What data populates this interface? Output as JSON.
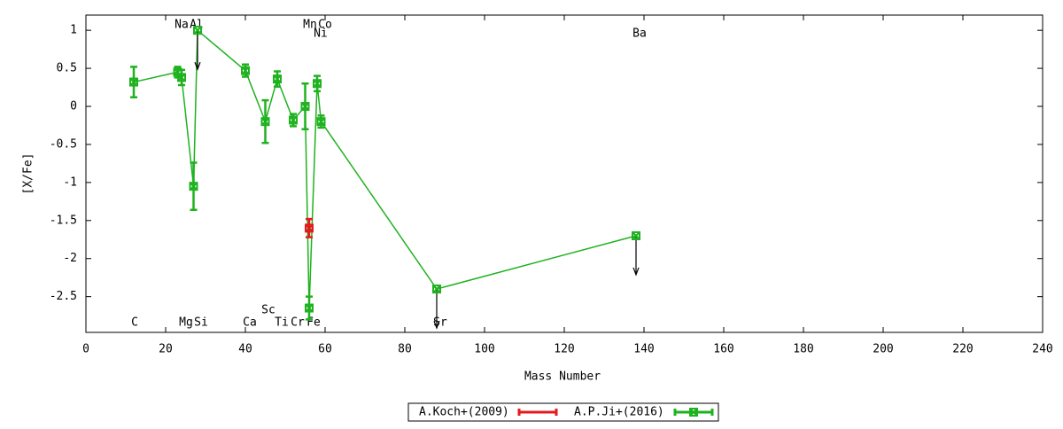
{
  "chart_data": {
    "type": "line",
    "xlabel": "Mass Number",
    "ylabel": "[X/Fe]",
    "xlim": [
      0,
      240
    ],
    "xticks": [
      0,
      20,
      40,
      60,
      80,
      100,
      120,
      140,
      160,
      180,
      200,
      220,
      240
    ],
    "ylim": [
      -2.97,
      1.2
    ],
    "yticks": [
      1,
      0.5,
      0,
      -0.5,
      -1,
      -1.5,
      -2,
      -2.5
    ],
    "series": [
      {
        "name": "A.Koch+(2009)",
        "color": "#e41a1c",
        "x": [
          56
        ],
        "values": [
          -1.6
        ],
        "errors": [
          0.12
        ],
        "upper_limits": [
          false
        ]
      },
      {
        "name": "A.P.Ji+(2016)",
        "color": "#1fb21f",
        "x": [
          12,
          23,
          24,
          27,
          28,
          40,
          45,
          48,
          52,
          55,
          56,
          58,
          59,
          88,
          138
        ],
        "values": [
          0.32,
          0.45,
          0.38,
          -1.05,
          1.0,
          0.47,
          -0.2,
          0.36,
          -0.18,
          0.0,
          -2.65,
          0.3,
          -0.2,
          -2.4,
          -1.7
        ],
        "errors": [
          0.2,
          0.07,
          0.1,
          0.31,
          null,
          0.08,
          0.28,
          0.1,
          0.08,
          0.3,
          0.15,
          0.1,
          0.08,
          null,
          null
        ],
        "upper_limits": [
          false,
          false,
          false,
          false,
          true,
          false,
          false,
          false,
          false,
          false,
          false,
          false,
          false,
          true,
          true
        ]
      }
    ],
    "annotations": [
      "Na",
      "Al",
      "Mn",
      "Co",
      "Ni",
      "Ba",
      "C",
      "Mg",
      "Si",
      "Ca",
      "Sc",
      "Ti",
      "Cr",
      "Fe",
      "Sr"
    ]
  }
}
